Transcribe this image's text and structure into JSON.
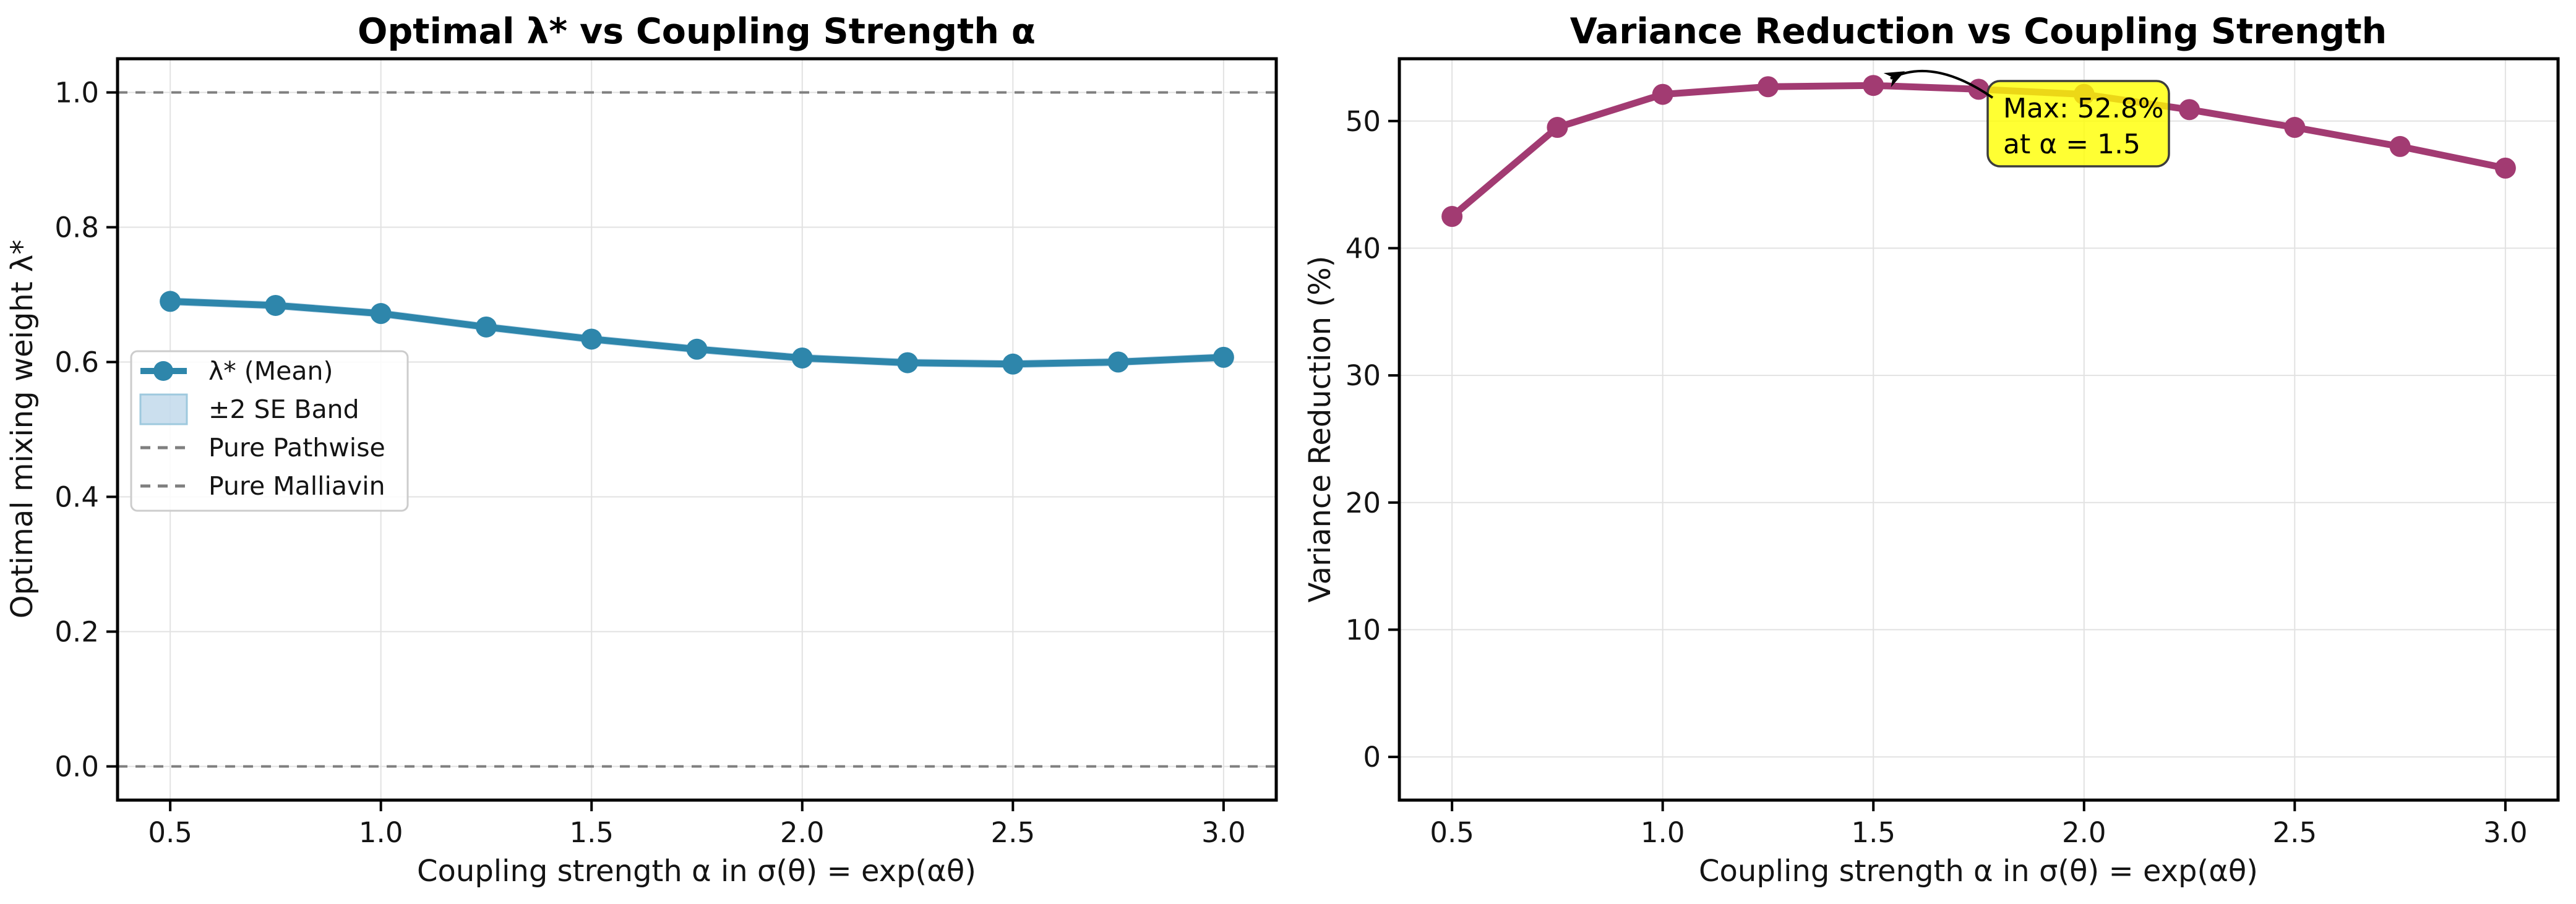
{
  "figure": {
    "background": "#ffffff"
  },
  "chart_data": [
    {
      "type": "line",
      "title": "Optimal λ* vs Coupling Strength α",
      "xlabel": "Coupling strength α in σ(θ) = exp(αθ)",
      "ylabel": "Optimal mixing weight λ*",
      "x": [
        0.5,
        0.75,
        1.0,
        1.25,
        1.5,
        1.75,
        2.0,
        2.25,
        2.5,
        2.75,
        3.0
      ],
      "xlim": [
        0.375,
        3.125
      ],
      "ylim": [
        -0.05,
        1.05
      ],
      "xticks": [
        0.5,
        1.0,
        1.5,
        2.0,
        2.5,
        3.0
      ],
      "xtick_labels": [
        "0.5",
        "1.0",
        "1.5",
        "2.0",
        "2.5",
        "3.0"
      ],
      "yticks": [
        0.0,
        0.2,
        0.4,
        0.6,
        0.8,
        1.0
      ],
      "ytick_labels": [
        "0.0",
        "0.2",
        "0.4",
        "0.6",
        "0.8",
        "1.0"
      ],
      "grid": true,
      "legend_position": "center left",
      "series": [
        {
          "name": "λ* (Mean)",
          "type": "line",
          "color": "#2E86AB",
          "values": [
            0.69,
            0.684,
            0.672,
            0.652,
            0.634,
            0.619,
            0.606,
            0.599,
            0.597,
            0.6,
            0.607
          ]
        },
        {
          "name": "±2 SE Band",
          "type": "band",
          "around_series": 0,
          "half_width": 0.006,
          "fill": "#7DAFD4",
          "fill_opacity": 0.4,
          "edge": "#9EC9DE"
        },
        {
          "name": "Pure Pathwise",
          "type": "hline",
          "y": 1.0,
          "color": "#7f7f7f",
          "linestyle": "dashed"
        },
        {
          "name": "Pure Malliavin",
          "type": "hline",
          "y": 0.0,
          "color": "#7f7f7f",
          "linestyle": "dashed"
        }
      ]
    },
    {
      "type": "line",
      "title": "Variance Reduction vs Coupling Strength",
      "xlabel": "Coupling strength α in σ(θ) = exp(αθ)",
      "ylabel": "Variance Reduction (%)",
      "x": [
        0.5,
        0.75,
        1.0,
        1.25,
        1.5,
        1.75,
        2.0,
        2.25,
        2.5,
        2.75,
        3.0
      ],
      "xlim": [
        0.375,
        3.125
      ],
      "ylim": [
        -3.4,
        54.9
      ],
      "xticks": [
        0.5,
        1.0,
        1.5,
        2.0,
        2.5,
        3.0
      ],
      "xtick_labels": [
        "0.5",
        "1.0",
        "1.5",
        "2.0",
        "2.5",
        "3.0"
      ],
      "yticks": [
        0,
        10,
        20,
        30,
        40,
        50
      ],
      "ytick_labels": [
        "0",
        "10",
        "20",
        "30",
        "40",
        "50"
      ],
      "grid": true,
      "series": [
        {
          "name": "Variance Reduction",
          "type": "line",
          "color": "#A23B72",
          "values": [
            42.5,
            49.5,
            52.1,
            52.7,
            52.8,
            52.5,
            52.1,
            50.9,
            49.5,
            48.0,
            46.3
          ]
        }
      ],
      "annotation": {
        "lines": [
          "Max: 52.8%",
          "at α = 1.5"
        ],
        "target": {
          "x": 1.5,
          "y": 52.8
        },
        "box_fill": "#FFFF00",
        "box_fill_opacity": 0.8,
        "box_border": "#3C3C3C",
        "text_color": "#000000"
      }
    }
  ]
}
